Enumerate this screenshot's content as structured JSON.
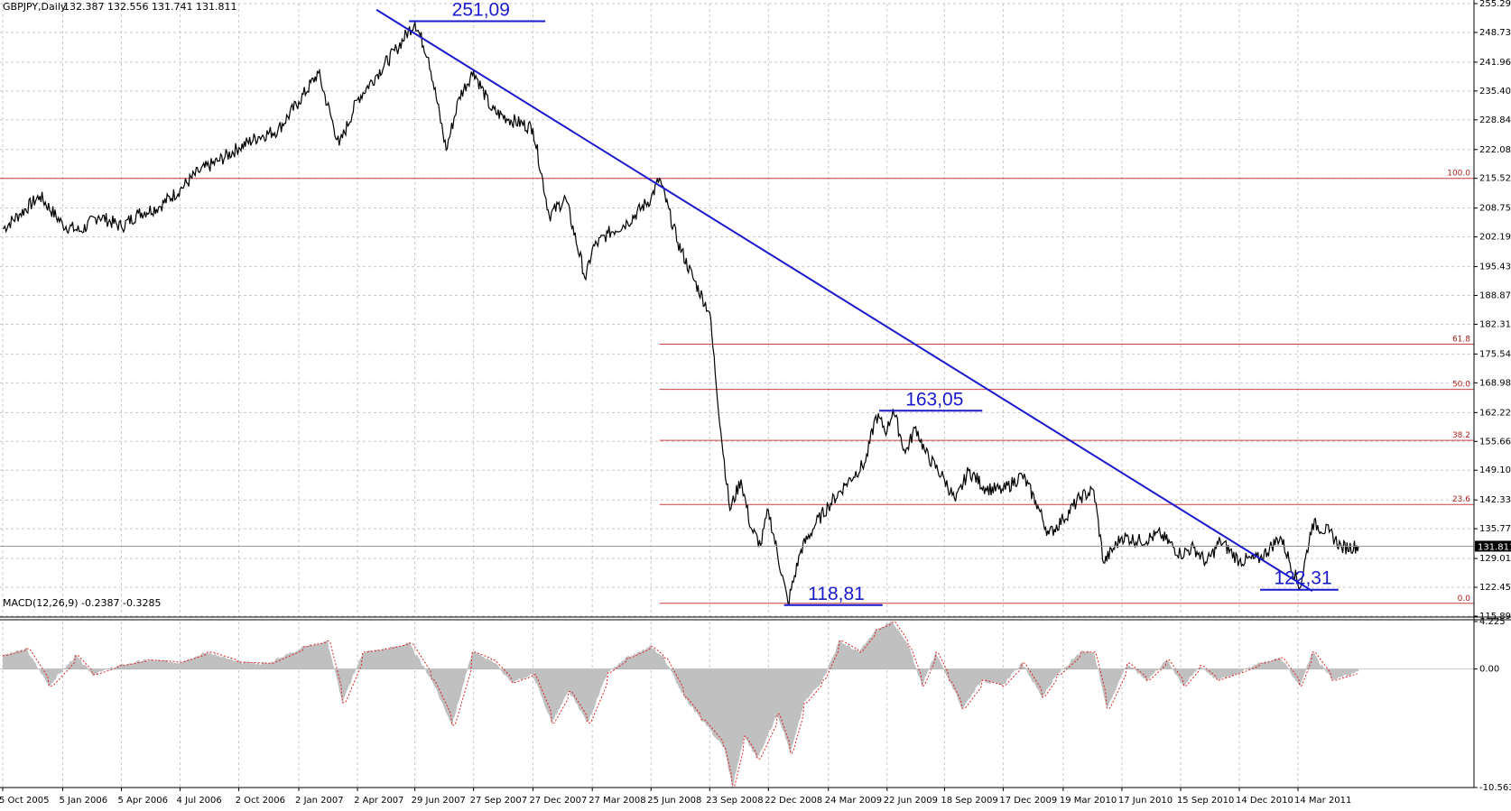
{
  "header": {
    "symbol": "GBPJPY,Daily",
    "quote": "132.387 132.556 131.741 131.811"
  },
  "macd_header": {
    "label": "MACD(12,26,9) -0.2387 -0.3285"
  },
  "colors": {
    "price": "#000000",
    "trendline": "#1a1acc",
    "fibonacci": "#c84040",
    "grid": "#c8c8c8",
    "macd_histogram": "#c0c0c0",
    "macd_signal": "#dd2222",
    "current_price_box": "#000000"
  },
  "chart_data": [
    {
      "type": "line",
      "name": "price-panel",
      "y_ticks": [
        "255.290",
        "248.730",
        "241.965",
        "235.405",
        "228.845",
        "222.080",
        "215.520",
        "208.755",
        "202.195",
        "195.430",
        "188.870",
        "182.310",
        "175.545",
        "168.985",
        "162.220",
        "155.660",
        "149.100",
        "142.335",
        "135.775",
        "129.010",
        "122.450",
        "115.890"
      ],
      "ylim": [
        115.89,
        255.29
      ],
      "x_ticks": [
        "5 Oct 2005",
        "5 Jan 2006",
        "5 Apr 2006",
        "4 Jul 2006",
        "2 Oct 2006",
        "2 Jan 2007",
        "2 Apr 2007",
        "29 Jun 2007",
        "27 Sep 2007",
        "27 Dec 2007",
        "27 Mar 2008",
        "25 Jun 2008",
        "23 Sep 2008",
        "22 Dec 2008",
        "24 Mar 2009",
        "22 Jun 2009",
        "18 Sep 2009",
        "17 Dec 2009",
        "19 Mar 2010",
        "17 Jun 2010",
        "15 Sep 2010",
        "14 Dec 2010",
        "14 Mar 2011"
      ],
      "current_price": "131.811",
      "series": [
        {
          "values": [
            [
              "2005-10-05",
              204.0
            ],
            [
              "2005-11-01",
              207.5
            ],
            [
              "2005-12-01",
              211.5
            ],
            [
              "2006-01-05",
              205.0
            ],
            [
              "2006-02-01",
              203.5
            ],
            [
              "2006-03-01",
              207.0
            ],
            [
              "2006-04-05",
              204.5
            ],
            [
              "2006-05-01",
              207.5
            ],
            [
              "2006-06-01",
              209.0
            ],
            [
              "2006-07-04",
              213.0
            ],
            [
              "2006-08-01",
              217.0
            ],
            [
              "2006-09-01",
              219.5
            ],
            [
              "2006-10-02",
              222.5
            ],
            [
              "2006-11-01",
              225.0
            ],
            [
              "2006-12-01",
              226.5
            ],
            [
              "2007-01-02",
              233.0
            ],
            [
              "2007-02-01",
              239.5
            ],
            [
              "2007-03-05",
              223.0
            ],
            [
              "2007-04-02",
              233.5
            ],
            [
              "2007-05-01",
              239.0
            ],
            [
              "2007-06-01",
              245.0
            ],
            [
              "2007-06-29",
              251.09
            ],
            [
              "2007-07-20",
              243.0
            ],
            [
              "2007-08-16",
              222.0
            ],
            [
              "2007-09-05",
              234.0
            ],
            [
              "2007-09-27",
              240.0
            ],
            [
              "2007-10-25",
              231.0
            ],
            [
              "2007-11-20",
              229.0
            ],
            [
              "2007-12-27",
              227.0
            ],
            [
              "2008-01-21",
              207.0
            ],
            [
              "2008-02-15",
              211.0
            ],
            [
              "2008-03-17",
              192.5
            ],
            [
              "2008-03-27",
              199.5
            ],
            [
              "2008-04-20",
              203.0
            ],
            [
              "2008-05-20",
              205.5
            ],
            [
              "2008-06-25",
              211.0
            ],
            [
              "2008-07-08",
              215.5
            ],
            [
              "2008-08-05",
              201.0
            ],
            [
              "2008-08-28",
              193.0
            ],
            [
              "2008-09-23",
              185.0
            ],
            [
              "2008-10-10",
              158.0
            ],
            [
              "2008-10-24",
              140.0
            ],
            [
              "2008-11-10",
              147.0
            ],
            [
              "2008-11-25",
              136.0
            ],
            [
              "2008-12-10",
              132.0
            ],
            [
              "2008-12-22",
              140.0
            ],
            [
              "2009-01-21",
              118.81
            ],
            [
              "2009-02-10",
              131.0
            ],
            [
              "2009-03-05",
              137.0
            ],
            [
              "2009-03-24",
              141.0
            ],
            [
              "2009-04-20",
              146.0
            ],
            [
              "2009-05-20",
              151.0
            ],
            [
              "2009-06-05",
              161.5
            ],
            [
              "2009-06-22",
              158.0
            ],
            [
              "2009-07-01",
              163.05
            ],
            [
              "2009-07-20",
              153.0
            ],
            [
              "2009-08-05",
              159.0
            ],
            [
              "2009-08-20",
              153.0
            ],
            [
              "2009-09-18",
              147.0
            ],
            [
              "2009-10-05",
              142.0
            ],
            [
              "2009-10-25",
              149.0
            ],
            [
              "2009-11-20",
              145.0
            ],
            [
              "2009-12-17",
              144.5
            ],
            [
              "2010-01-15",
              148.0
            ],
            [
              "2010-02-05",
              142.0
            ],
            [
              "2010-02-25",
              134.5
            ],
            [
              "2010-03-19",
              138.0
            ],
            [
              "2010-04-15",
              143.0
            ],
            [
              "2010-05-05",
              144.5
            ],
            [
              "2010-05-20",
              128.0
            ],
            [
              "2010-06-17",
              134.0
            ],
            [
              "2010-07-15",
              133.0
            ],
            [
              "2010-08-15",
              134.5
            ],
            [
              "2010-09-15",
              130.0
            ],
            [
              "2010-10-05",
              131.5
            ],
            [
              "2010-10-25",
              128.0
            ],
            [
              "2010-11-15",
              133.0
            ],
            [
              "2010-12-14",
              128.5
            ],
            [
              "2011-01-15",
              129.0
            ],
            [
              "2011-02-15",
              134.0
            ],
            [
              "2011-03-17",
              122.31
            ],
            [
              "2011-04-05",
              137.0
            ],
            [
              "2011-05-01",
              135.0
            ],
            [
              "2011-05-20",
              131.5
            ],
            [
              "2011-06-15",
              131.811
            ]
          ]
        }
      ],
      "fibonacci_levels": [
        {
          "label": "100.0",
          "value": 215.52
        },
        {
          "label": "61.8",
          "value": 177.8
        },
        {
          "label": "50.0",
          "value": 167.5
        },
        {
          "label": "38.2",
          "value": 155.9
        },
        {
          "label": "23.6",
          "value": 141.3
        },
        {
          "label": "0.0",
          "value": 118.81
        }
      ],
      "trendline": [
        [
          "2007-05-01",
          253.9
        ],
        [
          "2011-04-05",
          121.6
        ]
      ],
      "annotations": [
        {
          "text": "251,09",
          "date": "2007-06-29",
          "value": 251.09,
          "line_start": "2007-06-20",
          "line_end": "2008-01-15"
        },
        {
          "text": "163,05",
          "date": "2009-07-01",
          "value": 163.05,
          "line_start": "2009-06-10",
          "line_end": "2009-11-15"
        },
        {
          "text": "118,81",
          "date": "2009-01-21",
          "value": 118.81,
          "line_start": "2009-01-15",
          "line_end": "2009-06-15"
        },
        {
          "text": "122,31",
          "date": "2011-03-17",
          "value": 122.31,
          "line_start": "2011-01-15",
          "line_end": "2011-05-15"
        }
      ]
    },
    {
      "type": "area",
      "name": "macd-panel",
      "y_ticks": [
        "4.225",
        "0.00",
        "-10.5638"
      ],
      "ylim": [
        -10.5638,
        4.225
      ],
      "series": [
        {
          "name": "MACD(12,26,9)",
          "values": [
            [
              "2005-10-05",
              1.2
            ],
            [
              "2005-11-10",
              1.8
            ],
            [
              "2005-12-15",
              -1.5
            ],
            [
              "2006-01-25",
              1.2
            ],
            [
              "2006-02-20",
              -0.5
            ],
            [
              "2006-04-01",
              0.3
            ],
            [
              "2006-05-15",
              0.8
            ],
            [
              "2006-07-01",
              0.6
            ],
            [
              "2006-08-15",
              1.5
            ],
            [
              "2006-10-01",
              0.6
            ],
            [
              "2006-11-15",
              0.5
            ],
            [
              "2007-01-10",
              2.0
            ],
            [
              "2007-02-15",
              2.5
            ],
            [
              "2007-03-10",
              -3.0
            ],
            [
              "2007-04-10",
              1.5
            ],
            [
              "2007-05-15",
              1.8
            ],
            [
              "2007-06-20",
              2.3
            ],
            [
              "2007-07-25",
              -1.0
            ],
            [
              "2007-08-25",
              -5.0
            ],
            [
              "2007-09-25",
              1.5
            ],
            [
              "2007-10-25",
              0.8
            ],
            [
              "2007-11-25",
              -1.2
            ],
            [
              "2007-12-27",
              -0.5
            ],
            [
              "2008-01-25",
              -4.8
            ],
            [
              "2008-02-20",
              -2.0
            ],
            [
              "2008-03-20",
              -4.8
            ],
            [
              "2008-04-20",
              -0.3
            ],
            [
              "2008-05-20",
              1.0
            ],
            [
              "2008-06-25",
              2.0
            ],
            [
              "2008-07-15",
              1.0
            ],
            [
              "2008-08-15",
              -2.5
            ],
            [
              "2008-09-10",
              -4.5
            ],
            [
              "2008-10-15",
              -7.0
            ],
            [
              "2008-10-28",
              -10.56
            ],
            [
              "2008-11-15",
              -6.0
            ],
            [
              "2008-12-05",
              -8.0
            ],
            [
              "2009-01-05",
              -4.0
            ],
            [
              "2009-01-25",
              -7.5
            ],
            [
              "2009-02-15",
              -3.0
            ],
            [
              "2009-03-15",
              -1.0
            ],
            [
              "2009-04-10",
              2.5
            ],
            [
              "2009-05-10",
              1.5
            ],
            [
              "2009-06-05",
              3.5
            ],
            [
              "2009-07-01",
              4.2
            ],
            [
              "2009-07-25",
              2.0
            ],
            [
              "2009-08-15",
              -1.5
            ],
            [
              "2009-09-05",
              1.5
            ],
            [
              "2009-09-25",
              -1.0
            ],
            [
              "2009-10-15",
              -3.5
            ],
            [
              "2009-11-15",
              -1.0
            ],
            [
              "2009-12-15",
              -1.5
            ],
            [
              "2010-01-15",
              0.5
            ],
            [
              "2010-02-15",
              -2.5
            ],
            [
              "2010-03-10",
              -0.5
            ],
            [
              "2010-04-15",
              1.5
            ],
            [
              "2010-05-05",
              1.5
            ],
            [
              "2010-05-25",
              -3.5
            ],
            [
              "2010-06-25",
              0.5
            ],
            [
              "2010-07-25",
              -1.0
            ],
            [
              "2010-08-25",
              0.8
            ],
            [
              "2010-09-20",
              -1.5
            ],
            [
              "2010-10-15",
              0.3
            ],
            [
              "2010-11-10",
              -1.0
            ],
            [
              "2010-12-05",
              -0.5
            ],
            [
              "2011-01-15",
              0.5
            ],
            [
              "2011-02-15",
              1.0
            ],
            [
              "2011-03-17",
              -1.5
            ],
            [
              "2011-04-05",
              1.5
            ],
            [
              "2011-05-05",
              -1.0
            ],
            [
              "2011-06-15",
              -0.24
            ]
          ]
        }
      ]
    }
  ]
}
